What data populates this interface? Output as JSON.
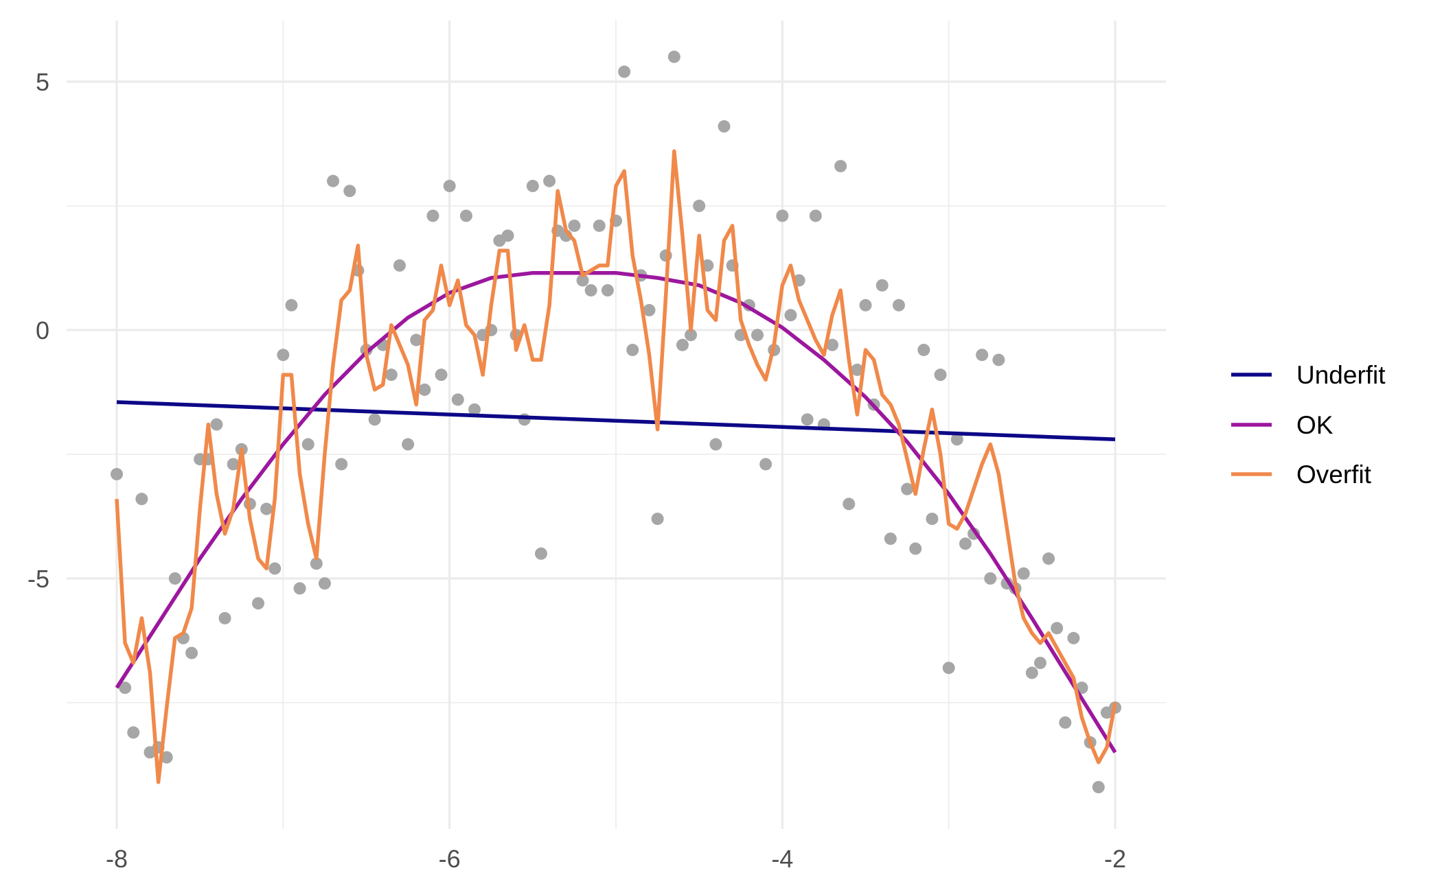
{
  "chart_data": {
    "type": "line",
    "title": "",
    "xlabel": "",
    "ylabel": "",
    "xlim": [
      -8,
      -2
    ],
    "ylim": [
      -9.8,
      6.3
    ],
    "x_ticks": [
      -8,
      -6,
      -4,
      -2
    ],
    "y_ticks": [
      -5,
      0,
      5
    ],
    "x_tick_labels": [
      "-8",
      "-6",
      "-4",
      "-2"
    ],
    "y_tick_labels": [
      "-5",
      "0",
      "5"
    ],
    "grid": true,
    "legend_position": "right",
    "point_color": "#a6a6a6",
    "points": [
      [
        -8.0,
        -2.9
      ],
      [
        -7.95,
        -7.2
      ],
      [
        -7.9,
        -8.1
      ],
      [
        -7.85,
        -3.4
      ],
      [
        -7.8,
        -8.5
      ],
      [
        -7.75,
        -8.4
      ],
      [
        -7.7,
        -8.6
      ],
      [
        -7.65,
        -5.0
      ],
      [
        -7.6,
        -6.2
      ],
      [
        -7.55,
        -6.5
      ],
      [
        -7.5,
        -2.6
      ],
      [
        -7.45,
        -2.6
      ],
      [
        -7.4,
        -1.9
      ],
      [
        -7.35,
        -5.8
      ],
      [
        -7.3,
        -2.7
      ],
      [
        -7.25,
        -2.4
      ],
      [
        -7.2,
        -3.5
      ],
      [
        -7.15,
        -5.5
      ],
      [
        -7.1,
        -3.6
      ],
      [
        -7.05,
        -4.8
      ],
      [
        -7.0,
        -0.5
      ],
      [
        -6.95,
        0.5
      ],
      [
        -6.9,
        -5.2
      ],
      [
        -6.85,
        -2.3
      ],
      [
        -6.8,
        -4.7
      ],
      [
        -6.75,
        -5.1
      ],
      [
        -6.7,
        3.0
      ],
      [
        -6.65,
        -2.7
      ],
      [
        -6.6,
        2.8
      ],
      [
        -6.55,
        1.2
      ],
      [
        -6.5,
        -0.4
      ],
      [
        -6.45,
        -1.8
      ],
      [
        -6.4,
        -0.3
      ],
      [
        -6.35,
        -0.9
      ],
      [
        -6.3,
        1.3
      ],
      [
        -6.25,
        -2.3
      ],
      [
        -6.2,
        -0.2
      ],
      [
        -6.15,
        -1.2
      ],
      [
        -6.1,
        2.3
      ],
      [
        -6.05,
        -0.9
      ],
      [
        -6.0,
        2.9
      ],
      [
        -5.95,
        -1.4
      ],
      [
        -5.9,
        2.3
      ],
      [
        -5.85,
        -1.6
      ],
      [
        -5.8,
        -0.1
      ],
      [
        -5.75,
        0.0
      ],
      [
        -5.7,
        1.8
      ],
      [
        -5.65,
        1.9
      ],
      [
        -5.6,
        -0.1
      ],
      [
        -5.55,
        -1.8
      ],
      [
        -5.5,
        2.9
      ],
      [
        -5.45,
        -4.5
      ],
      [
        -5.4,
        3.0
      ],
      [
        -5.35,
        2.0
      ],
      [
        -5.3,
        1.9
      ],
      [
        -5.25,
        2.1
      ],
      [
        -5.2,
        1.0
      ],
      [
        -5.15,
        0.8
      ],
      [
        -5.1,
        2.1
      ],
      [
        -5.05,
        0.8
      ],
      [
        -5.0,
        2.2
      ],
      [
        -4.95,
        5.2
      ],
      [
        -4.9,
        -0.4
      ],
      [
        -4.85,
        1.1
      ],
      [
        -4.8,
        0.4
      ],
      [
        -4.75,
        -3.8
      ],
      [
        -4.7,
        1.5
      ],
      [
        -4.65,
        5.5
      ],
      [
        -4.6,
        -0.3
      ],
      [
        -4.55,
        -0.1
      ],
      [
        -4.5,
        2.5
      ],
      [
        -4.45,
        1.3
      ],
      [
        -4.4,
        -2.3
      ],
      [
        -4.35,
        4.1
      ],
      [
        -4.3,
        1.3
      ],
      [
        -4.25,
        -0.1
      ],
      [
        -4.2,
        0.5
      ],
      [
        -4.15,
        -0.1
      ],
      [
        -4.1,
        -2.7
      ],
      [
        -4.05,
        -0.4
      ],
      [
        -4.0,
        2.3
      ],
      [
        -3.95,
        0.3
      ],
      [
        -3.9,
        1.0
      ],
      [
        -3.85,
        -1.8
      ],
      [
        -3.8,
        2.3
      ],
      [
        -3.75,
        -1.9
      ],
      [
        -3.7,
        -0.3
      ],
      [
        -3.65,
        3.3
      ],
      [
        -3.6,
        -3.5
      ],
      [
        -3.55,
        -0.8
      ],
      [
        -3.5,
        0.5
      ],
      [
        -3.45,
        -1.5
      ],
      [
        -3.4,
        0.9
      ],
      [
        -3.35,
        -4.2
      ],
      [
        -3.3,
        0.5
      ],
      [
        -3.25,
        -3.2
      ],
      [
        -3.2,
        -4.4
      ],
      [
        -3.15,
        -0.4
      ],
      [
        -3.1,
        -3.8
      ],
      [
        -3.05,
        -0.9
      ],
      [
        -3.0,
        -6.8
      ],
      [
        -2.95,
        -2.2
      ],
      [
        -2.9,
        -4.3
      ],
      [
        -2.85,
        -4.1
      ],
      [
        -2.8,
        -0.5
      ],
      [
        -2.75,
        -5.0
      ],
      [
        -2.7,
        -0.6
      ],
      [
        -2.65,
        -5.1
      ],
      [
        -2.6,
        -5.2
      ],
      [
        -2.55,
        -4.9
      ],
      [
        -2.5,
        -6.9
      ],
      [
        -2.45,
        -6.7
      ],
      [
        -2.4,
        -4.6
      ],
      [
        -2.35,
        -6.0
      ],
      [
        -2.3,
        -7.9
      ],
      [
        -2.25,
        -6.2
      ],
      [
        -2.2,
        -7.2
      ],
      [
        -2.15,
        -8.3
      ],
      [
        -2.1,
        -9.2
      ],
      [
        -2.05,
        -7.7
      ],
      [
        -2.0,
        -7.6
      ]
    ],
    "series": [
      {
        "name": "Underfit",
        "color": "#0d0887",
        "x": [
          -8,
          -2
        ],
        "y": [
          -1.45,
          -2.2
        ]
      },
      {
        "name": "OK",
        "color": "#9c179e",
        "x": [
          -8,
          -7.75,
          -7.5,
          -7.25,
          -7,
          -6.75,
          -6.5,
          -6.25,
          -6,
          -5.75,
          -5.5,
          -5.25,
          -5,
          -4.75,
          -4.5,
          -4.25,
          -4,
          -3.75,
          -3.5,
          -3.25,
          -3,
          -2.75,
          -2.5,
          -2.25,
          -2
        ],
        "y": [
          -7.2,
          -5.9,
          -4.6,
          -3.4,
          -2.3,
          -1.3,
          -0.45,
          0.25,
          0.75,
          1.05,
          1.15,
          1.15,
          1.15,
          1.05,
          0.9,
          0.55,
          0.05,
          -0.6,
          -1.35,
          -2.25,
          -3.3,
          -4.5,
          -5.8,
          -7.15,
          -8.5
        ]
      },
      {
        "name": "Overfit",
        "color": "#f0894a",
        "x": [
          -8.0,
          -7.95,
          -7.9,
          -7.85,
          -7.8,
          -7.75,
          -7.7,
          -7.65,
          -7.6,
          -7.55,
          -7.5,
          -7.45,
          -7.4,
          -7.35,
          -7.3,
          -7.25,
          -7.2,
          -7.15,
          -7.1,
          -7.05,
          -7.0,
          -6.95,
          -6.9,
          -6.85,
          -6.8,
          -6.75,
          -6.7,
          -6.65,
          -6.6,
          -6.55,
          -6.5,
          -6.45,
          -6.4,
          -6.35,
          -6.3,
          -6.25,
          -6.2,
          -6.15,
          -6.1,
          -6.05,
          -6.0,
          -5.95,
          -5.9,
          -5.85,
          -5.8,
          -5.75,
          -5.7,
          -5.65,
          -5.6,
          -5.55,
          -5.5,
          -5.45,
          -5.4,
          -5.35,
          -5.3,
          -5.25,
          -5.2,
          -5.15,
          -5.1,
          -5.05,
          -5.0,
          -4.95,
          -4.9,
          -4.85,
          -4.8,
          -4.75,
          -4.7,
          -4.65,
          -4.6,
          -4.55,
          -4.5,
          -4.45,
          -4.4,
          -4.35,
          -4.3,
          -4.25,
          -4.2,
          -4.15,
          -4.1,
          -4.05,
          -4.0,
          -3.95,
          -3.9,
          -3.85,
          -3.8,
          -3.75,
          -3.7,
          -3.65,
          -3.6,
          -3.55,
          -3.5,
          -3.45,
          -3.4,
          -3.35,
          -3.3,
          -3.25,
          -3.2,
          -3.15,
          -3.1,
          -3.05,
          -3.0,
          -2.95,
          -2.9,
          -2.85,
          -2.8,
          -2.75,
          -2.7,
          -2.65,
          -2.6,
          -2.55,
          -2.5,
          -2.45,
          -2.4,
          -2.35,
          -2.3,
          -2.25,
          -2.2,
          -2.15,
          -2.1,
          -2.05,
          -2.0
        ],
        "y": [
          -3.4,
          -6.3,
          -6.7,
          -5.8,
          -6.9,
          -9.1,
          -7.6,
          -6.2,
          -6.1,
          -5.6,
          -3.6,
          -1.9,
          -3.3,
          -4.1,
          -3.6,
          -2.4,
          -3.8,
          -4.6,
          -4.8,
          -3.4,
          -0.9,
          -0.9,
          -2.9,
          -3.9,
          -4.6,
          -2.5,
          -0.7,
          0.6,
          0.8,
          1.7,
          -0.5,
          -1.2,
          -1.1,
          0.1,
          -0.3,
          -0.7,
          -1.5,
          0.2,
          0.4,
          1.3,
          0.5,
          1.0,
          0.1,
          -0.1,
          -0.9,
          0.5,
          1.6,
          1.6,
          -0.4,
          0.1,
          -0.6,
          -0.6,
          0.5,
          2.8,
          2.0,
          1.8,
          1.1,
          1.2,
          1.3,
          1.3,
          2.9,
          3.2,
          1.5,
          0.6,
          -0.5,
          -2.0,
          0.7,
          3.6,
          1.9,
          0.0,
          1.9,
          0.4,
          0.2,
          1.8,
          2.1,
          0.2,
          -0.3,
          -0.7,
          -1.0,
          -0.3,
          0.9,
          1.3,
          0.6,
          0.2,
          -0.2,
          -0.5,
          0.3,
          0.8,
          -0.6,
          -1.7,
          -0.4,
          -0.6,
          -1.3,
          -1.5,
          -1.9,
          -2.6,
          -3.3,
          -2.4,
          -1.6,
          -2.5,
          -3.9,
          -4.0,
          -3.7,
          -3.2,
          -2.7,
          -2.3,
          -2.9,
          -4.0,
          -5.1,
          -5.8,
          -6.1,
          -6.3,
          -6.1,
          -6.4,
          -6.7,
          -7.0,
          -7.8,
          -8.3,
          -8.7,
          -8.4,
          -7.5
        ]
      }
    ]
  }
}
